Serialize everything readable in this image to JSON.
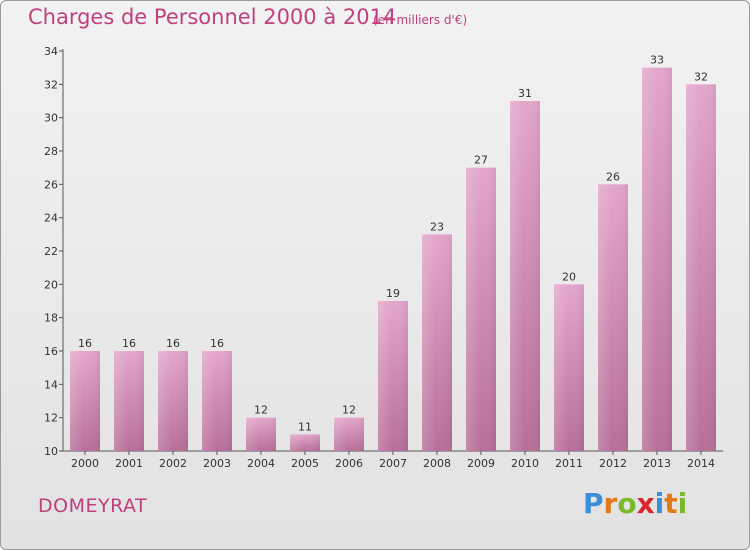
{
  "header": {
    "title": "Charges de Personnel 2000 à 2014",
    "subtitle": "(en milliers d'€)"
  },
  "footer": {
    "commune": "DOMEYRAT",
    "logo_letters": [
      "P",
      "r",
      "o",
      "x",
      "i",
      "t",
      "i"
    ],
    "logo_colors": [
      "#3a8fd8",
      "#e07a18",
      "#7ab82c",
      "#d8262c",
      "#3a8fd8",
      "#e07a18",
      "#7ab82c"
    ]
  },
  "colors": {
    "bar_top": "#e3a6cb",
    "bar_bottom": "#b86f9a",
    "accent": "#c0407e"
  },
  "chart_data": {
    "type": "bar",
    "categories": [
      "2000",
      "2001",
      "2002",
      "2003",
      "2004",
      "2005",
      "2006",
      "2007",
      "2008",
      "2009",
      "2010",
      "2011",
      "2012",
      "2013",
      "2014"
    ],
    "values": [
      16,
      16,
      16,
      16,
      12,
      11,
      12,
      19,
      23,
      27,
      31,
      20,
      26,
      33,
      32
    ],
    "ylim": [
      10,
      34
    ],
    "yticks": [
      10,
      12,
      14,
      16,
      18,
      20,
      22,
      24,
      26,
      28,
      30,
      32,
      34
    ],
    "grid": false,
    "legend": "none"
  }
}
